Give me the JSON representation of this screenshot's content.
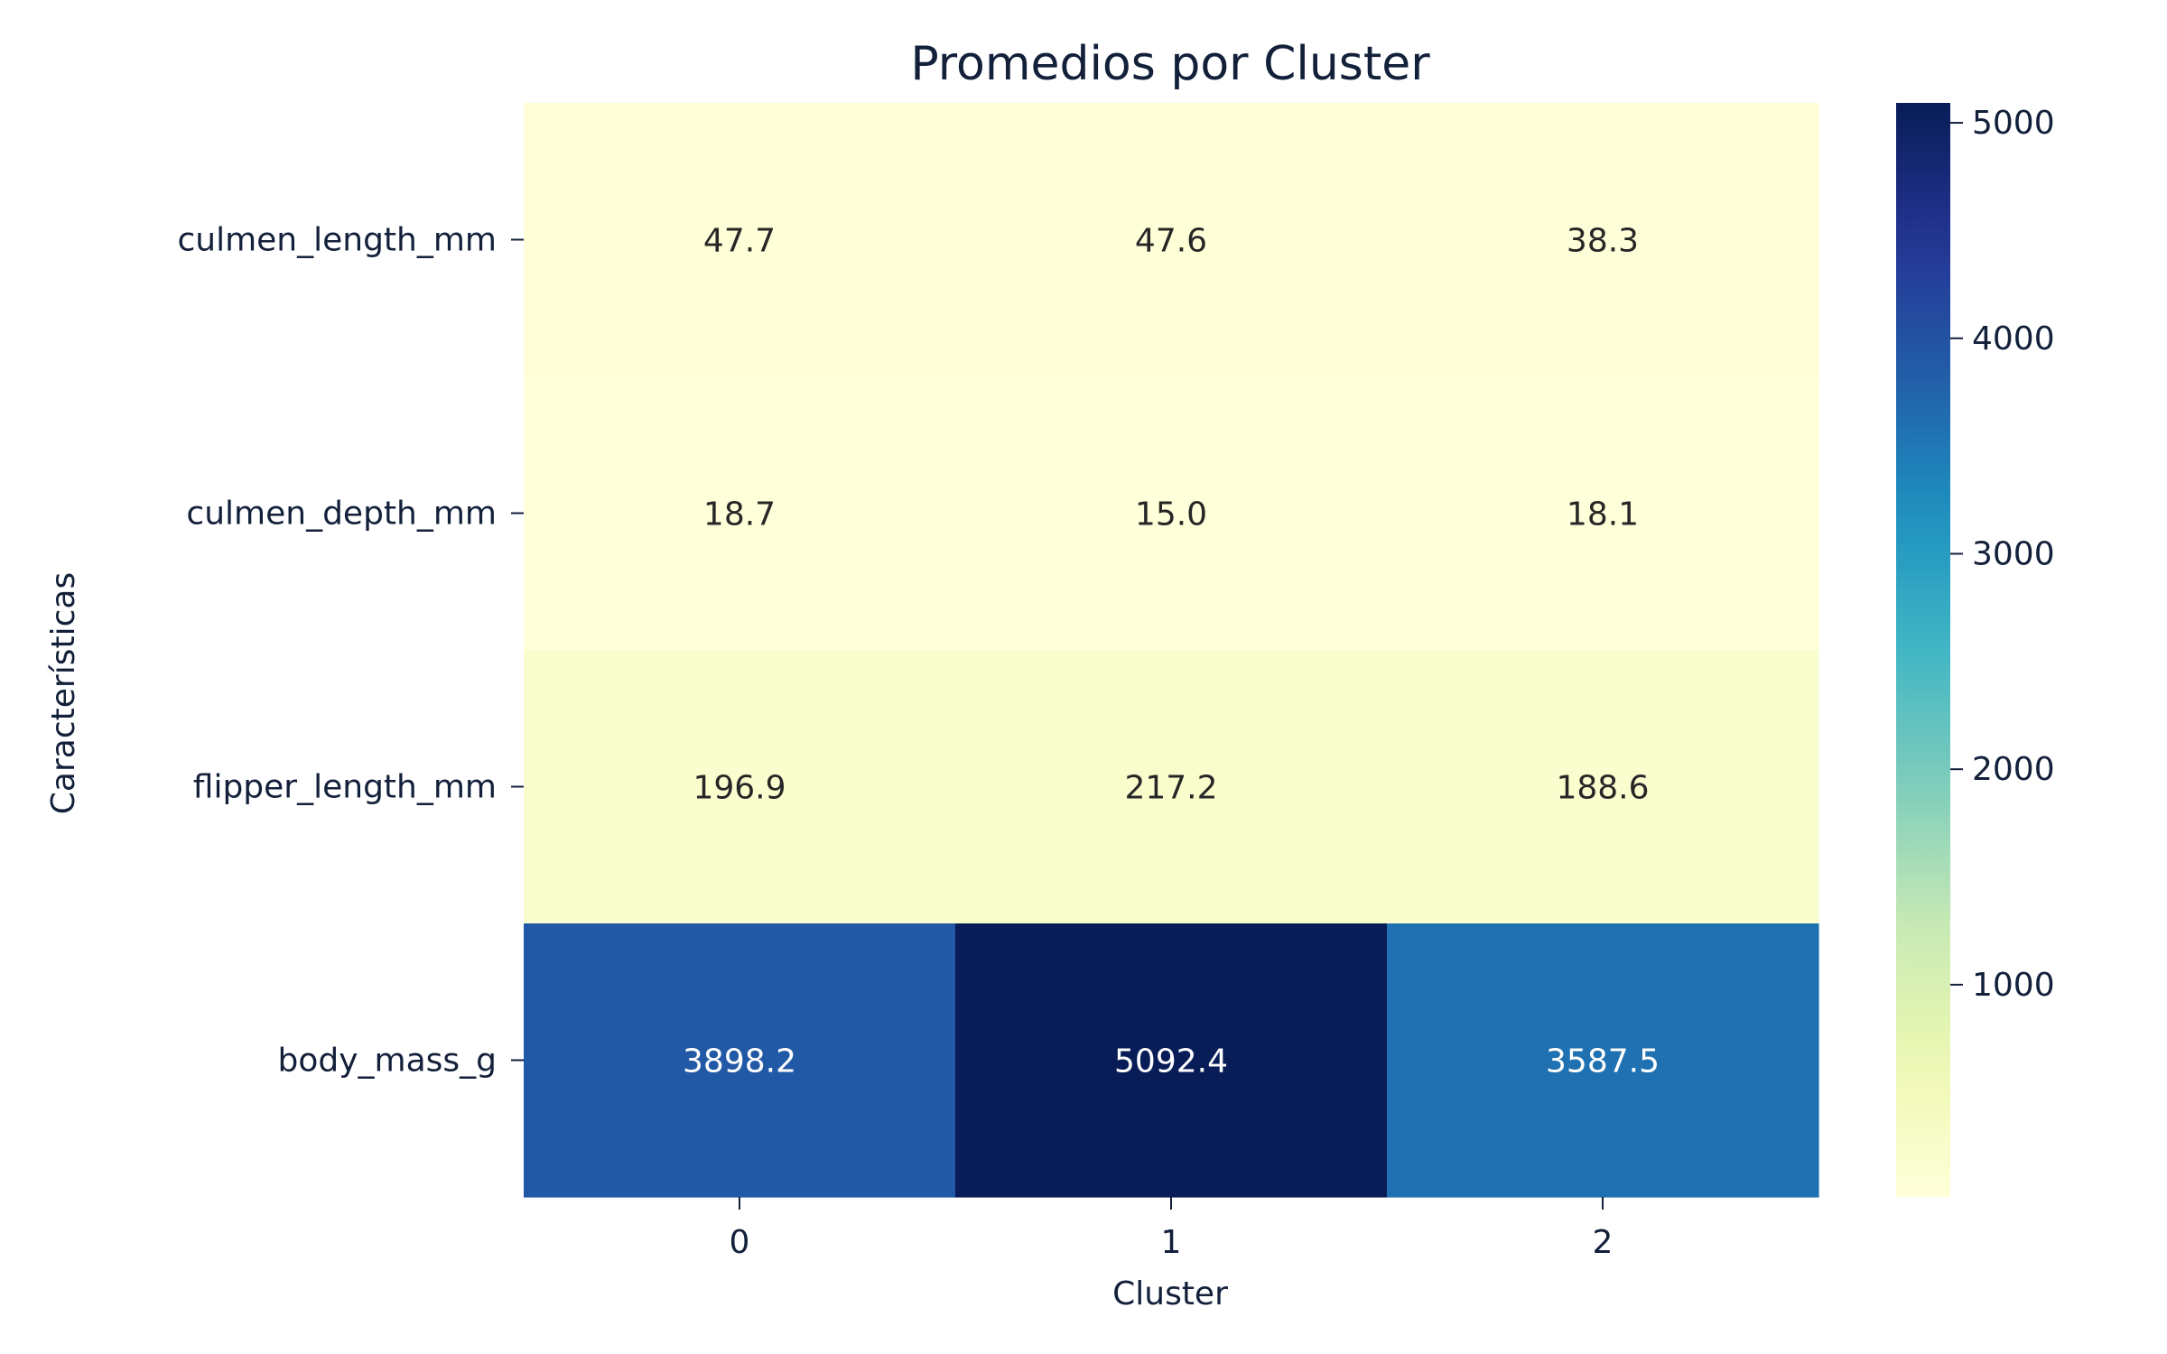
{
  "chart_data": {
    "type": "heatmap",
    "title": "Promedios por Cluster",
    "xlabel": "Cluster",
    "ylabel": "Características",
    "x_categories": [
      "0",
      "1",
      "2"
    ],
    "y_categories": [
      "culmen_length_mm",
      "culmen_depth_mm",
      "flipper_length_mm",
      "body_mass_g"
    ],
    "values": [
      [
        47.7,
        47.6,
        38.3
      ],
      [
        18.7,
        15.0,
        18.1
      ],
      [
        196.9,
        217.2,
        188.6
      ],
      [
        3898.2,
        5092.4,
        3587.5
      ]
    ],
    "value_labels": [
      [
        "47.7",
        "47.6",
        "38.3"
      ],
      [
        "18.7",
        "15.0",
        "18.1"
      ],
      [
        "196.9",
        "217.2",
        "188.6"
      ],
      [
        "3898.2",
        "5092.4",
        "3587.5"
      ]
    ],
    "colormap": "YlGnBu",
    "color_range": [
      15.0,
      5092.4
    ],
    "colorbar_ticks": [
      "1000",
      "2000",
      "3000",
      "4000",
      "5000"
    ],
    "colorbar_tick_values": [
      1000,
      2000,
      3000,
      4000,
      5000
    ],
    "grid": false,
    "legend": "colorbar-right"
  }
}
